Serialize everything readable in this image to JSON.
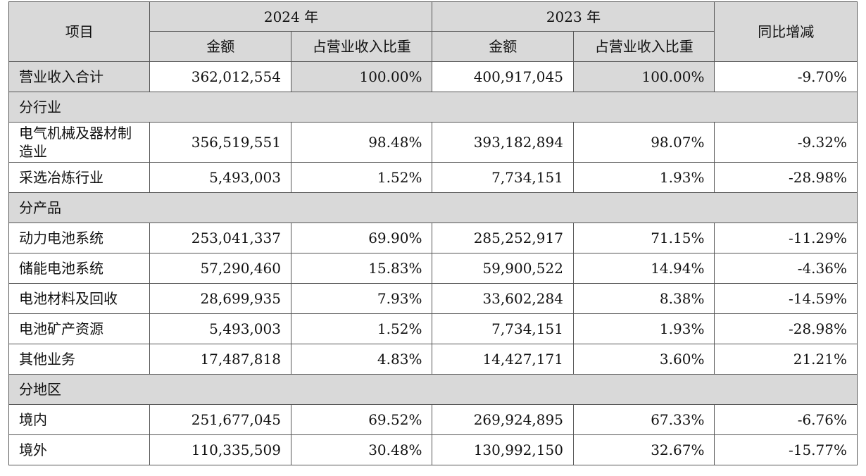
{
  "header": {
    "item": "项目",
    "year_2024": "2024 年",
    "year_2023": "2023 年",
    "yoy": "同比增减",
    "amount": "金额",
    "share": "占营业收入比重"
  },
  "total": {
    "label": "营业收入合计",
    "amt_2024": "362,012,554",
    "pct_2024": "100.00%",
    "amt_2023": "400,917,045",
    "pct_2023": "100.00%",
    "yoy": "-9.70%"
  },
  "sections": [
    {
      "title": "分行业",
      "rows": [
        {
          "label": "电气机械及器材制造业",
          "amt_2024": "356,519,551",
          "pct_2024": "98.48%",
          "amt_2023": "393,182,894",
          "pct_2023": "98.07%",
          "yoy": "-9.32%"
        },
        {
          "label": "采选冶炼行业",
          "amt_2024": "5,493,003",
          "pct_2024": "1.52%",
          "amt_2023": "7,734,151",
          "pct_2023": "1.93%",
          "yoy": "-28.98%"
        }
      ]
    },
    {
      "title": "分产品",
      "rows": [
        {
          "label": "动力电池系统",
          "amt_2024": "253,041,337",
          "pct_2024": "69.90%",
          "amt_2023": "285,252,917",
          "pct_2023": "71.15%",
          "yoy": "-11.29%"
        },
        {
          "label": "储能电池系统",
          "amt_2024": "57,290,460",
          "pct_2024": "15.83%",
          "amt_2023": "59,900,522",
          "pct_2023": "14.94%",
          "yoy": "-4.36%"
        },
        {
          "label": "电池材料及回收",
          "amt_2024": "28,699,935",
          "pct_2024": "7.93%",
          "amt_2023": "33,602,284",
          "pct_2023": "8.38%",
          "yoy": "-14.59%"
        },
        {
          "label": "电池矿产资源",
          "amt_2024": "5,493,003",
          "pct_2024": "1.52%",
          "amt_2023": "7,734,151",
          "pct_2023": "1.93%",
          "yoy": "-28.98%"
        },
        {
          "label": "其他业务",
          "amt_2024": "17,487,818",
          "pct_2024": "4.83%",
          "amt_2023": "14,427,171",
          "pct_2023": "3.60%",
          "yoy": "21.21%"
        }
      ]
    },
    {
      "title": "分地区",
      "rows": [
        {
          "label": "境内",
          "amt_2024": "251,677,045",
          "pct_2024": "69.52%",
          "amt_2023": "269,924,895",
          "pct_2023": "67.33%",
          "yoy": "-6.76%"
        },
        {
          "label": "境外",
          "amt_2024": "110,335,509",
          "pct_2024": "30.48%",
          "amt_2023": "130,992,150",
          "pct_2023": "32.67%",
          "yoy": "-15.77%"
        }
      ]
    }
  ]
}
